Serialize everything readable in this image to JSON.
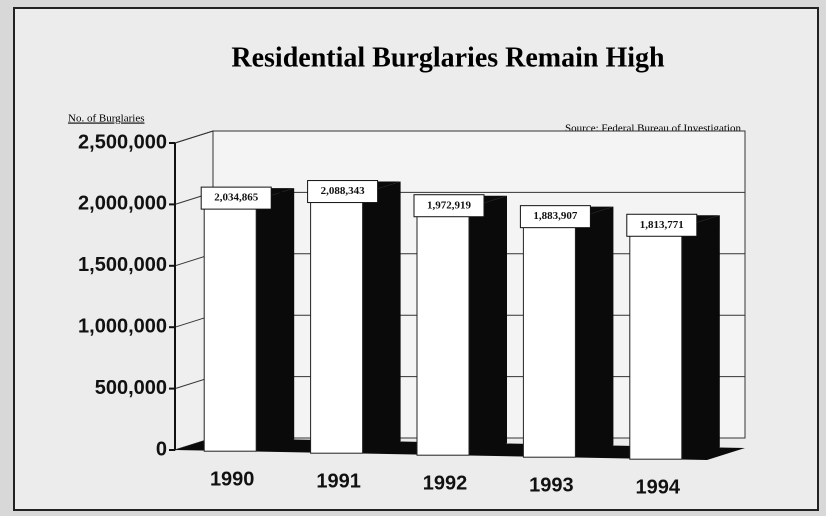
{
  "chart_data": {
    "type": "bar3d",
    "title": "Residential Burglaries Remain High",
    "y_label": "No. of Burglaries",
    "source": "Source: Federal Bureau of Investigation",
    "categories": [
      "1990",
      "1991",
      "1992",
      "1993",
      "1994"
    ],
    "values": [
      2034865,
      2088343,
      1972919,
      1883907,
      1813771
    ],
    "value_labels": [
      "2,034,865",
      "2,088,343",
      "1,972,919",
      "1,883,907",
      "1,813,771"
    ],
    "ylim": [
      0,
      2500000
    ],
    "yticks": [
      0,
      {
        "value": 500000,
        "label": "500,000"
      },
      {
        "value": 1000000,
        "label": "1,000,000"
      },
      {
        "value": 1500000,
        "label": "1,500,000"
      },
      {
        "value": 2000000,
        "label": "2,000,000"
      },
      {
        "value": 2500000,
        "label": "2,500,000"
      }
    ],
    "grid": true,
    "front_color": "#ffffff",
    "side_color": "#0a0a0a"
  }
}
